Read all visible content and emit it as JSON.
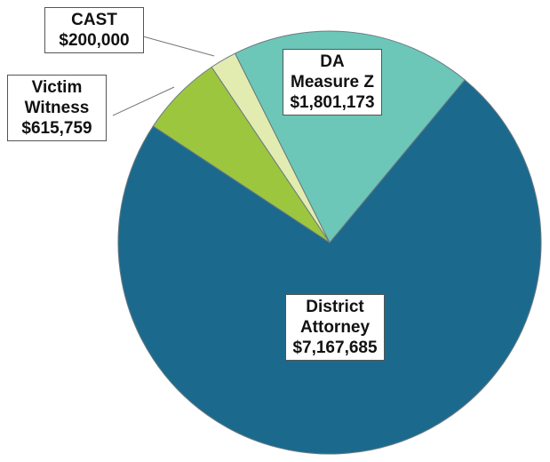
{
  "chart_data": {
    "type": "pie",
    "categories": [
      "District Attorney",
      "Victim Witness",
      "CAST",
      "DA Measure Z"
    ],
    "values": [
      7167685,
      615759,
      200000,
      1801173
    ],
    "value_labels": [
      "$7,167,685",
      "$615,759",
      "$200,000",
      "$1,801,173"
    ],
    "colors": [
      "#1b6a8e",
      "#9dc63f",
      "#e2ecb0",
      "#6cc7b8"
    ]
  }
}
